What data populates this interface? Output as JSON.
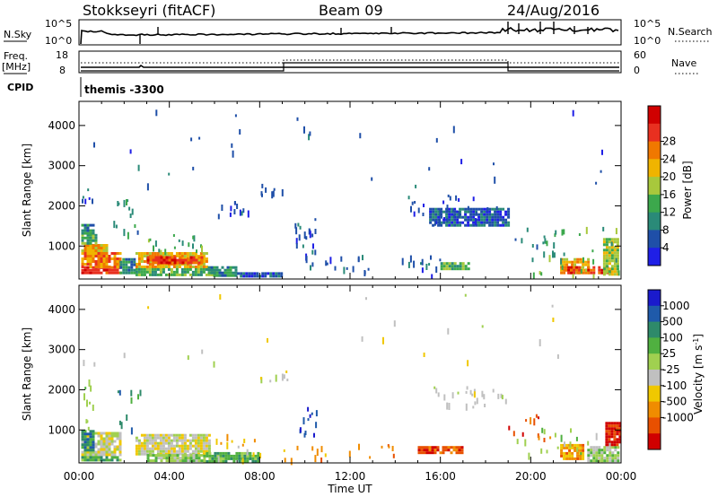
{
  "header": {
    "station": "Stokkseyri (fitACF)",
    "beam": "Beam 09",
    "date": "24/Aug/2016"
  },
  "top_panels": {
    "nsky_label": "N.Sky",
    "nsky_top": "10^5",
    "nsky_bottom": "10^0",
    "nsearch_label": "N.Search",
    "nsearch_top": "10^5",
    "nsearch_bottom": "10^0",
    "freq_label": "Freq.",
    "freq_unit": "[MHz]",
    "freq_top": "18",
    "freq_bottom": "8",
    "nave_label": "Nave",
    "nave_top": "60",
    "nave_bottom": "0",
    "cpid_label": "CPID",
    "cpid_value": "themis -3300"
  },
  "colors": {
    "power": [
      "#1f1fe6",
      "#1f4fa8",
      "#2a8a78",
      "#3ca84c",
      "#a8c83c",
      "#f0b400",
      "#f07800",
      "#e83020",
      "#d00000"
    ],
    "velocity": [
      "#1a1acc",
      "#1f5aaa",
      "#2e8a6a",
      "#50b040",
      "#a0d050",
      "#c0c0c0",
      "#f0c800",
      "#f08c00",
      "#e85000",
      "#d00000"
    ]
  },
  "chart_data": [
    {
      "type": "heatmap",
      "name": "power",
      "xlabel": "",
      "ylabel": "Slant Range [km]",
      "xlim": [
        0,
        24
      ],
      "ylim": [
        180,
        4600
      ],
      "yticks": [
        1000,
        2000,
        3000,
        4000
      ],
      "colorbar_label": "Power [dB]",
      "colorbar_ticks": [
        "4",
        "8",
        "12",
        "16",
        "20",
        "24",
        "28"
      ],
      "blocks": [
        {
          "t0": 0.1,
          "t1": 1.8,
          "r0": 300,
          "r1": 500,
          "c": 7
        },
        {
          "t0": 0.1,
          "t1": 1.8,
          "r0": 500,
          "r1": 850,
          "c": 6
        },
        {
          "t0": 0.1,
          "t1": 1.2,
          "r0": 850,
          "r1": 1050,
          "c": 5
        },
        {
          "t0": 0.1,
          "t1": 0.8,
          "r0": 1050,
          "r1": 1300,
          "c": 3
        },
        {
          "t0": 0.1,
          "t1": 0.6,
          "r0": 1300,
          "r1": 1550,
          "c": 2
        },
        {
          "t0": 2.5,
          "t1": 5.7,
          "r0": 450,
          "r1": 850,
          "c": 5
        },
        {
          "t0": 3.0,
          "t1": 5.5,
          "r0": 550,
          "r1": 750,
          "c": 7
        },
        {
          "t0": 2.5,
          "t1": 6.0,
          "r0": 300,
          "r1": 450,
          "c": 3
        },
        {
          "t0": 1.8,
          "t1": 2.5,
          "r0": 300,
          "r1": 700,
          "c": 2
        },
        {
          "t0": 5.7,
          "t1": 7.0,
          "r0": 250,
          "r1": 500,
          "c": 2
        },
        {
          "t0": 7.0,
          "t1": 9.0,
          "r0": 220,
          "r1": 350,
          "c": 1
        },
        {
          "t0": 16.0,
          "t1": 17.2,
          "r0": 400,
          "r1": 600,
          "c": 3
        },
        {
          "t0": 21.3,
          "t1": 22.5,
          "r0": 300,
          "r1": 700,
          "c": 5
        },
        {
          "t0": 21.5,
          "t1": 22.2,
          "r0": 350,
          "r1": 500,
          "c": 7
        },
        {
          "t0": 22.5,
          "t1": 23.5,
          "r0": 300,
          "r1": 500,
          "c": 7
        },
        {
          "t0": 23.2,
          "t1": 23.9,
          "r0": 300,
          "r1": 1200,
          "c": 4
        },
        {
          "t0": 15.5,
          "t1": 19.0,
          "r0": 1500,
          "r1": 1950,
          "c": 1
        }
      ],
      "scatter": [
        {
          "t0": 0.1,
          "t1": 0.6,
          "r0": 2150,
          "r1": 2450,
          "c": 1,
          "n": 6
        },
        {
          "t0": 1.5,
          "t1": 2.6,
          "r0": 1300,
          "r1": 2300,
          "c": 2,
          "n": 14
        },
        {
          "t0": 3.0,
          "t1": 5.5,
          "r0": 850,
          "r1": 1300,
          "c": 3,
          "n": 18
        },
        {
          "t0": 6.0,
          "t1": 7.6,
          "r0": 1800,
          "r1": 2200,
          "c": 1,
          "n": 12
        },
        {
          "t0": 8.0,
          "t1": 9.0,
          "r0": 2300,
          "r1": 2550,
          "c": 1,
          "n": 8
        },
        {
          "t0": 9.5,
          "t1": 10.5,
          "r0": 700,
          "r1": 1700,
          "c": 1,
          "n": 20
        },
        {
          "t0": 10.0,
          "t1": 16.0,
          "r0": 300,
          "r1": 800,
          "c": 1,
          "n": 30
        },
        {
          "t0": 14.5,
          "t1": 18.5,
          "r0": 1600,
          "r1": 2300,
          "c": 1,
          "n": 30
        },
        {
          "t0": 19.0,
          "t1": 21.5,
          "r0": 700,
          "r1": 1500,
          "c": 2,
          "n": 18
        },
        {
          "t0": 20.0,
          "t1": 24.0,
          "r0": 300,
          "r1": 1500,
          "c": 3,
          "n": 25
        },
        {
          "t0": 0.0,
          "t1": 24.0,
          "r0": 2500,
          "r1": 4400,
          "c": 1,
          "n": 30
        }
      ]
    },
    {
      "type": "heatmap",
      "name": "velocity",
      "xlabel": "Time UT",
      "ylabel": "Slant Range [km]",
      "xlim": [
        0,
        24
      ],
      "ylim": [
        180,
        4600
      ],
      "yticks": [
        1000,
        2000,
        3000,
        4000
      ],
      "xticks": [
        "00:00",
        "04:00",
        "08:00",
        "12:00",
        "16:00",
        "20:00",
        "00:00"
      ],
      "colorbar_label": "Velocity [m s^-1]",
      "colorbar_ticks": [
        "1000",
        "500",
        "100",
        "25",
        "-25",
        "-100",
        "-500",
        "-1000"
      ],
      "blocks": [
        {
          "t0": 0.1,
          "t1": 1.8,
          "r0": 350,
          "r1": 950,
          "c": 5
        },
        {
          "t0": 0.1,
          "t1": 0.6,
          "r0": 500,
          "r1": 1000,
          "c": 2
        },
        {
          "t0": 0.1,
          "t1": 1.8,
          "r0": 220,
          "r1": 350,
          "c": 3
        },
        {
          "t0": 2.5,
          "t1": 5.8,
          "r0": 400,
          "r1": 900,
          "c": 5
        },
        {
          "t0": 3.0,
          "t1": 5.5,
          "r0": 250,
          "r1": 400,
          "c": 4
        },
        {
          "t0": 5.5,
          "t1": 8.0,
          "r0": 220,
          "r1": 450,
          "c": 3
        },
        {
          "t0": 15.0,
          "t1": 17.0,
          "r0": 400,
          "r1": 600,
          "c": 8
        },
        {
          "t0": 21.3,
          "t1": 22.3,
          "r0": 250,
          "r1": 650,
          "c": 7
        },
        {
          "t0": 22.5,
          "t1": 23.9,
          "r0": 250,
          "r1": 600,
          "c": 4
        },
        {
          "t0": 23.3,
          "t1": 23.9,
          "r0": 600,
          "r1": 1200,
          "c": 9
        }
      ],
      "scatter": [
        {
          "t0": 0.1,
          "t1": 0.7,
          "r0": 1000,
          "r1": 2500,
          "c": 4,
          "n": 10
        },
        {
          "t0": 1.5,
          "t1": 2.8,
          "r0": 1000,
          "r1": 2000,
          "c": 2,
          "n": 10
        },
        {
          "t0": 6.0,
          "t1": 8.0,
          "r0": 300,
          "r1": 900,
          "c": 6,
          "n": 14
        },
        {
          "t0": 8.0,
          "t1": 9.2,
          "r0": 2200,
          "r1": 2500,
          "c": 5,
          "n": 8
        },
        {
          "t0": 9.5,
          "t1": 10.5,
          "r0": 800,
          "r1": 1600,
          "c": 1,
          "n": 12
        },
        {
          "t0": 9.0,
          "t1": 14.0,
          "r0": 300,
          "r1": 700,
          "c": 7,
          "n": 18
        },
        {
          "t0": 15.5,
          "t1": 19.0,
          "r0": 1600,
          "r1": 2100,
          "c": 5,
          "n": 26
        },
        {
          "t0": 19.0,
          "t1": 21.3,
          "r0": 800,
          "r1": 1500,
          "c": 8,
          "n": 12
        },
        {
          "t0": 19.0,
          "t1": 24.0,
          "r0": 300,
          "r1": 1200,
          "c": 4,
          "n": 20
        },
        {
          "t0": 0.0,
          "t1": 24.0,
          "r0": 2500,
          "r1": 4400,
          "c": 5,
          "n": 22
        }
      ]
    }
  ]
}
